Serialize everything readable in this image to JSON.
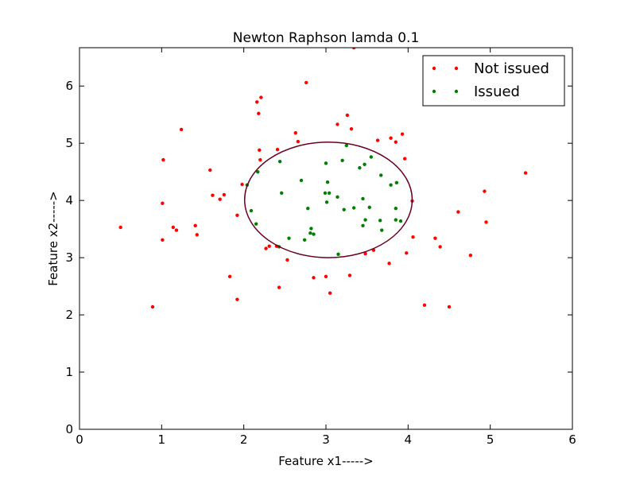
{
  "chart_data": {
    "type": "scatter",
    "title": "Newton Raphson lamda 0.1",
    "xlabel": "Feature x1----->",
    "ylabel": "Feature x2----->",
    "xlim": [
      0,
      6
    ],
    "ylim": [
      0,
      6.67
    ],
    "xticks": [
      "0",
      "1",
      "2",
      "3",
      "4",
      "5",
      "6"
    ],
    "yticks": [
      "0",
      "1",
      "2",
      "3",
      "4",
      "5",
      "6"
    ],
    "grid": false,
    "legend_position": "top-right",
    "series": [
      {
        "name": "Not issued",
        "color": "#ff0000",
        "points": [
          [
            0.5,
            3.53
          ],
          [
            0.89,
            2.14
          ],
          [
            1.01,
            3.95
          ],
          [
            1.01,
            3.31
          ],
          [
            1.02,
            4.71
          ],
          [
            1.14,
            3.53
          ],
          [
            1.18,
            3.48
          ],
          [
            1.24,
            5.24
          ],
          [
            1.41,
            3.56
          ],
          [
            1.43,
            3.4
          ],
          [
            1.59,
            4.53
          ],
          [
            1.62,
            4.09
          ],
          [
            1.71,
            4.02
          ],
          [
            1.76,
            4.1
          ],
          [
            1.83,
            2.67
          ],
          [
            1.92,
            2.27
          ],
          [
            1.92,
            3.74
          ],
          [
            1.98,
            4.28
          ],
          [
            2.16,
            5.72
          ],
          [
            2.18,
            5.52
          ],
          [
            2.19,
            4.88
          ],
          [
            2.2,
            4.71
          ],
          [
            2.21,
            5.8
          ],
          [
            2.27,
            3.16
          ],
          [
            2.31,
            3.2
          ],
          [
            2.4,
            3.2
          ],
          [
            2.41,
            4.89
          ],
          [
            2.43,
            2.48
          ],
          [
            2.53,
            2.96
          ],
          [
            2.63,
            5.18
          ],
          [
            2.66,
            5.03
          ],
          [
            2.76,
            6.06
          ],
          [
            2.85,
            2.65
          ],
          [
            3.0,
            2.67
          ],
          [
            3.05,
            2.38
          ],
          [
            3.14,
            5.33
          ],
          [
            3.26,
            5.49
          ],
          [
            3.29,
            2.69
          ],
          [
            3.31,
            5.25
          ],
          [
            3.34,
            6.67
          ],
          [
            3.48,
            3.07
          ],
          [
            3.58,
            3.13
          ],
          [
            3.63,
            5.05
          ],
          [
            3.77,
            2.9
          ],
          [
            3.79,
            5.09
          ],
          [
            3.85,
            5.02
          ],
          [
            3.93,
            5.16
          ],
          [
            3.96,
            4.73
          ],
          [
            3.98,
            3.08
          ],
          [
            4.05,
            3.99
          ],
          [
            4.06,
            3.36
          ],
          [
            4.2,
            2.17
          ],
          [
            4.33,
            3.34
          ],
          [
            4.39,
            3.19
          ],
          [
            4.5,
            2.14
          ],
          [
            4.61,
            3.8
          ],
          [
            4.76,
            3.04
          ],
          [
            4.93,
            4.16
          ],
          [
            4.95,
            3.62
          ],
          [
            5.43,
            4.48
          ]
        ]
      },
      {
        "name": "Issued",
        "color": "#008000",
        "points": [
          [
            2.04,
            4.27
          ],
          [
            2.09,
            3.82
          ],
          [
            2.15,
            3.59
          ],
          [
            2.17,
            4.5
          ],
          [
            2.43,
            3.19
          ],
          [
            2.44,
            4.68
          ],
          [
            2.46,
            4.13
          ],
          [
            2.55,
            3.34
          ],
          [
            2.7,
            4.35
          ],
          [
            2.74,
            3.31
          ],
          [
            2.78,
            3.86
          ],
          [
            2.81,
            3.43
          ],
          [
            2.82,
            3.51
          ],
          [
            2.85,
            3.41
          ],
          [
            2.99,
            4.13
          ],
          [
            3.0,
            4.65
          ],
          [
            3.01,
            3.97
          ],
          [
            3.02,
            4.32
          ],
          [
            3.04,
            4.13
          ],
          [
            3.14,
            4.06
          ],
          [
            3.15,
            3.06
          ],
          [
            3.2,
            4.7
          ],
          [
            3.22,
            3.84
          ],
          [
            3.25,
            4.96
          ],
          [
            3.34,
            3.87
          ],
          [
            3.41,
            4.57
          ],
          [
            3.45,
            4.03
          ],
          [
            3.45,
            3.56
          ],
          [
            3.47,
            4.63
          ],
          [
            3.48,
            3.66
          ],
          [
            3.53,
            3.88
          ],
          [
            3.55,
            4.76
          ],
          [
            3.66,
            3.65
          ],
          [
            3.67,
            4.44
          ],
          [
            3.68,
            3.48
          ],
          [
            3.79,
            4.27
          ],
          [
            3.85,
            3.86
          ],
          [
            3.85,
            3.66
          ],
          [
            3.86,
            4.31
          ],
          [
            3.91,
            3.64
          ]
        ]
      }
    ],
    "decision_boundary": {
      "type": "ellipse",
      "color": "#6a0020",
      "center": [
        3.03,
        4.01
      ],
      "radius_x": 1.02,
      "radius_y": 1.01
    }
  }
}
